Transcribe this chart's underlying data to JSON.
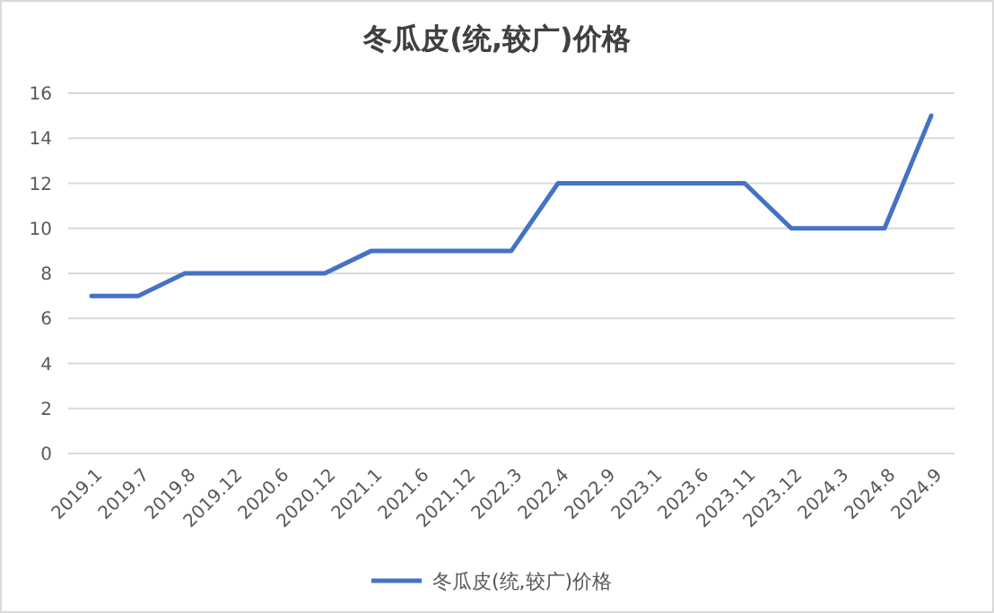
{
  "chart_data": {
    "type": "line",
    "title": "冬瓜皮(统,较广)价格",
    "categories": [
      "2019.1",
      "2019.7",
      "2019.8",
      "2019.12",
      "2020.6",
      "2020.12",
      "2021.1",
      "2021.6",
      "2021.12",
      "2022.3",
      "2022.4",
      "2022.9",
      "2023.1",
      "2023.6",
      "2023.11",
      "2023.12",
      "2024.3",
      "2024.8",
      "2024.9"
    ],
    "series": [
      {
        "name": "冬瓜皮(统,较广)价格",
        "color": "#4472c4",
        "values": [
          7,
          7,
          8,
          8,
          8,
          8,
          9,
          9,
          9,
          9,
          12,
          12,
          12,
          12,
          12,
          10,
          10,
          10,
          15
        ]
      }
    ],
    "ylim": [
      0,
      16
    ],
    "yticks": [
      0,
      2,
      4,
      6,
      8,
      10,
      12,
      14,
      16
    ],
    "grid": "y",
    "legend": "bottom",
    "marker": "none",
    "line_style": "solid"
  }
}
